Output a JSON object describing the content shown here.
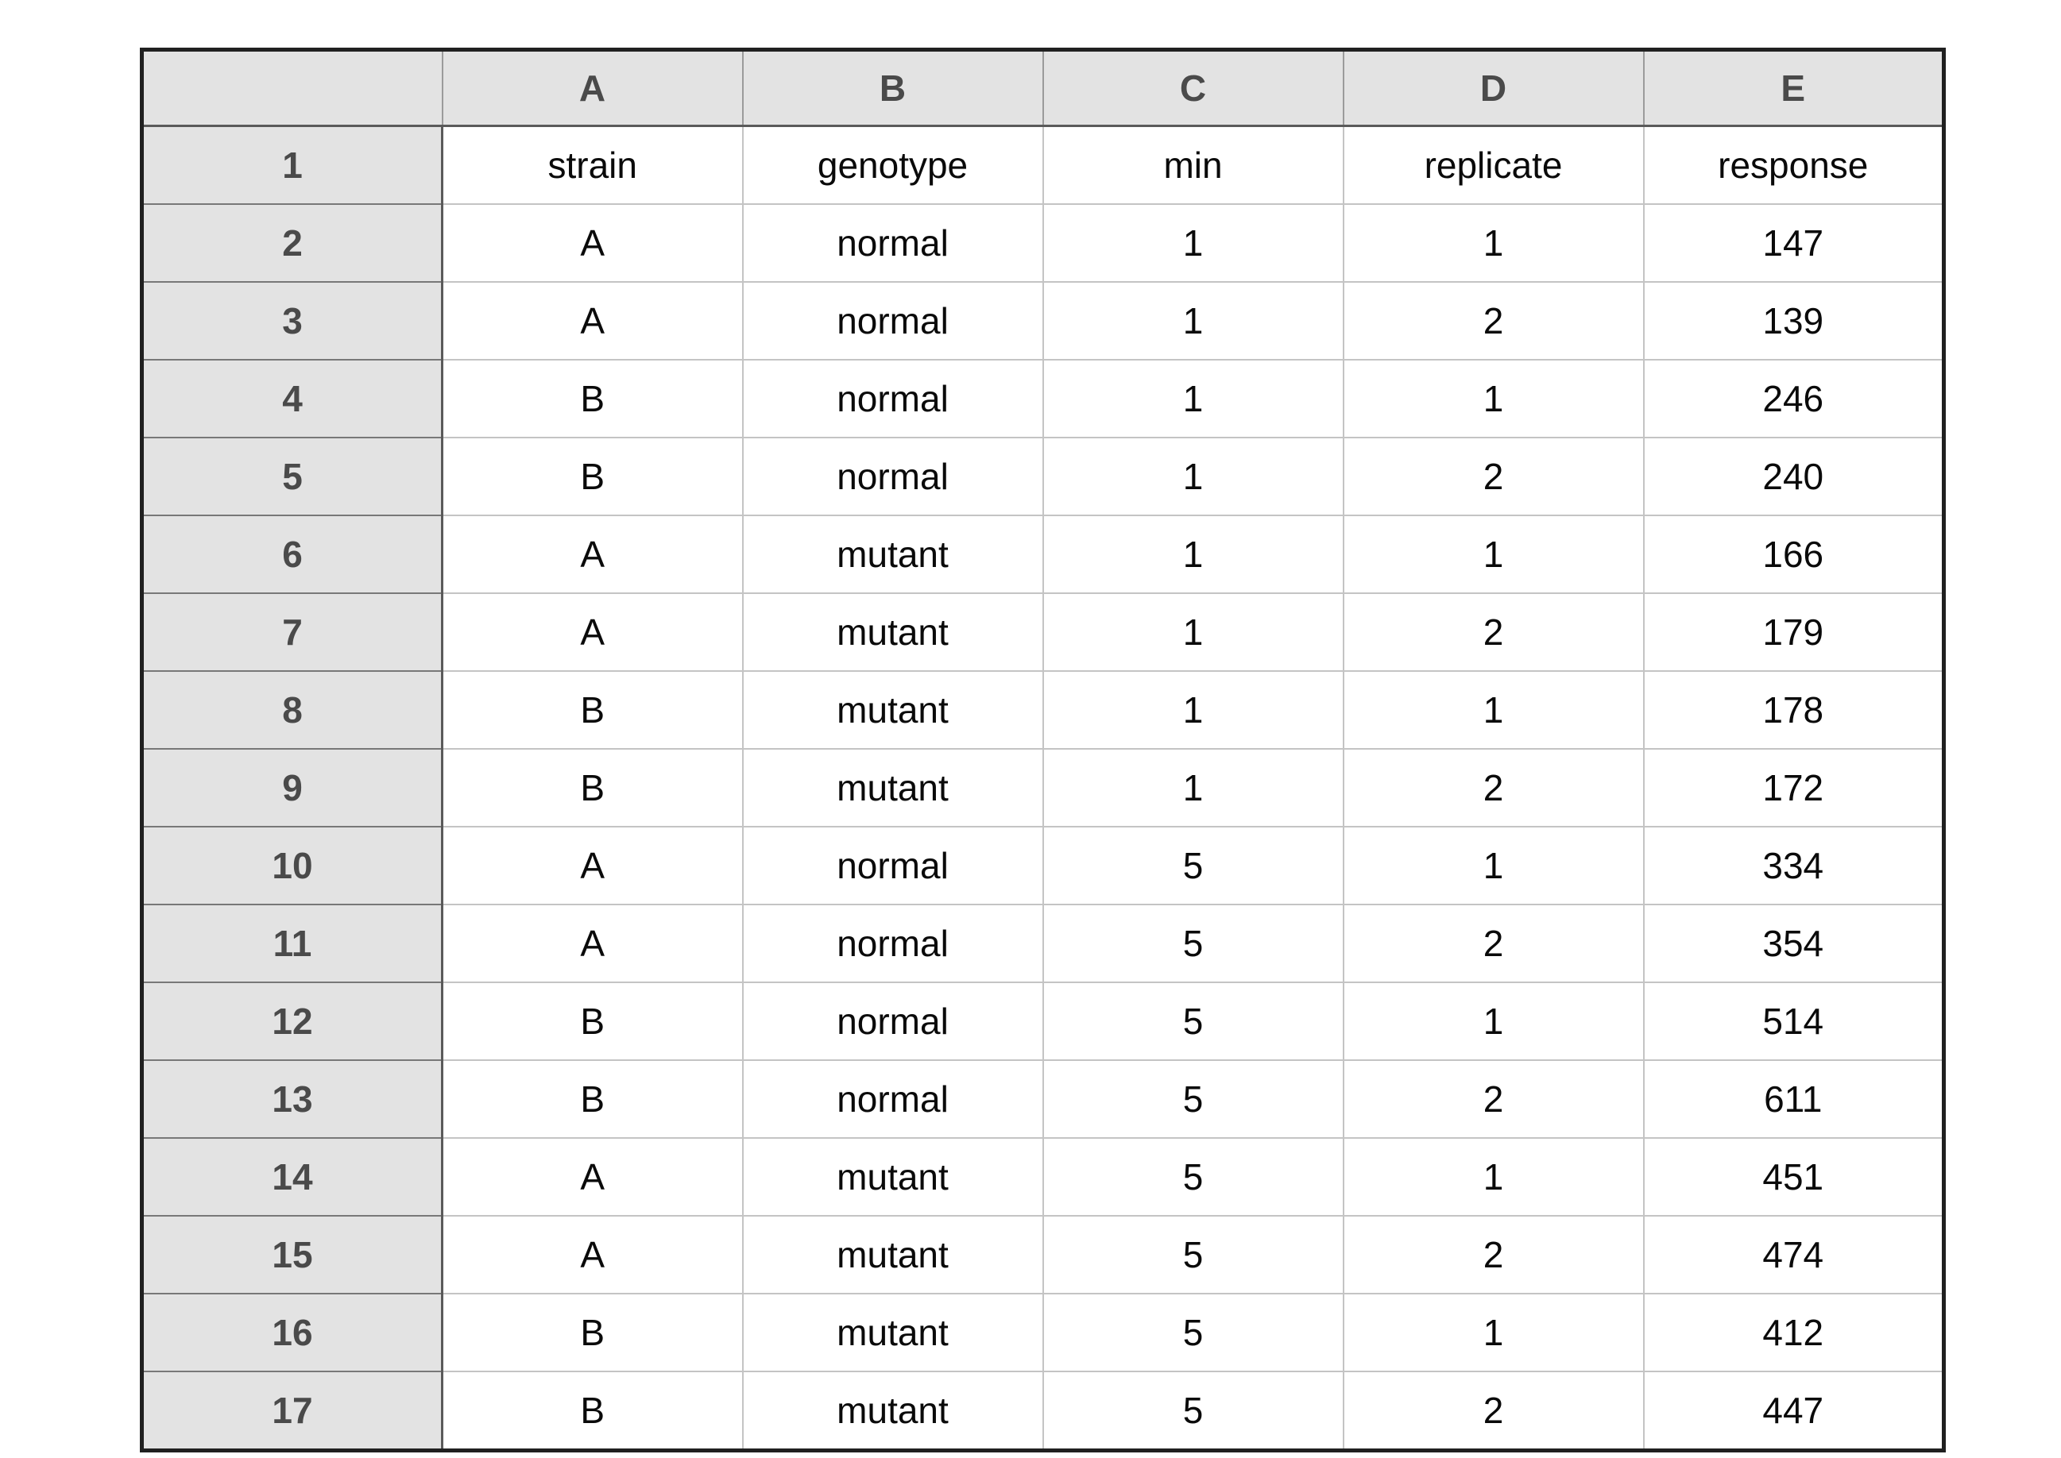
{
  "spreadsheet": {
    "corner_label": "",
    "column_letters": [
      "A",
      "B",
      "C",
      "D",
      "E"
    ],
    "header_fields": [
      "strain",
      "genotype",
      "min",
      "replicate",
      "response"
    ],
    "rows": [
      {
        "number": "1",
        "values": [
          "strain",
          "genotype",
          "min",
          "replicate",
          "response"
        ]
      },
      {
        "number": "2",
        "values": [
          "A",
          "normal",
          "1",
          "1",
          "147"
        ]
      },
      {
        "number": "3",
        "values": [
          "A",
          "normal",
          "1",
          "2",
          "139"
        ]
      },
      {
        "number": "4",
        "values": [
          "B",
          "normal",
          "1",
          "1",
          "246"
        ]
      },
      {
        "number": "5",
        "values": [
          "B",
          "normal",
          "1",
          "2",
          "240"
        ]
      },
      {
        "number": "6",
        "values": [
          "A",
          "mutant",
          "1",
          "1",
          "166"
        ]
      },
      {
        "number": "7",
        "values": [
          "A",
          "mutant",
          "1",
          "2",
          "179"
        ]
      },
      {
        "number": "8",
        "values": [
          "B",
          "mutant",
          "1",
          "1",
          "178"
        ]
      },
      {
        "number": "9",
        "values": [
          "B",
          "mutant",
          "1",
          "2",
          "172"
        ]
      },
      {
        "number": "10",
        "values": [
          "A",
          "normal",
          "5",
          "1",
          "334"
        ]
      },
      {
        "number": "11",
        "values": [
          "A",
          "normal",
          "5",
          "2",
          "354"
        ]
      },
      {
        "number": "12",
        "values": [
          "B",
          "normal",
          "5",
          "1",
          "514"
        ]
      },
      {
        "number": "13",
        "values": [
          "B",
          "normal",
          "5",
          "2",
          "611"
        ]
      },
      {
        "number": "14",
        "values": [
          "A",
          "mutant",
          "5",
          "1",
          "451"
        ]
      },
      {
        "number": "15",
        "values": [
          "A",
          "mutant",
          "5",
          "2",
          "474"
        ]
      },
      {
        "number": "16",
        "values": [
          "B",
          "mutant",
          "5",
          "1",
          "412"
        ]
      },
      {
        "number": "17",
        "values": [
          "B",
          "mutant",
          "5",
          "2",
          "447"
        ]
      }
    ]
  }
}
